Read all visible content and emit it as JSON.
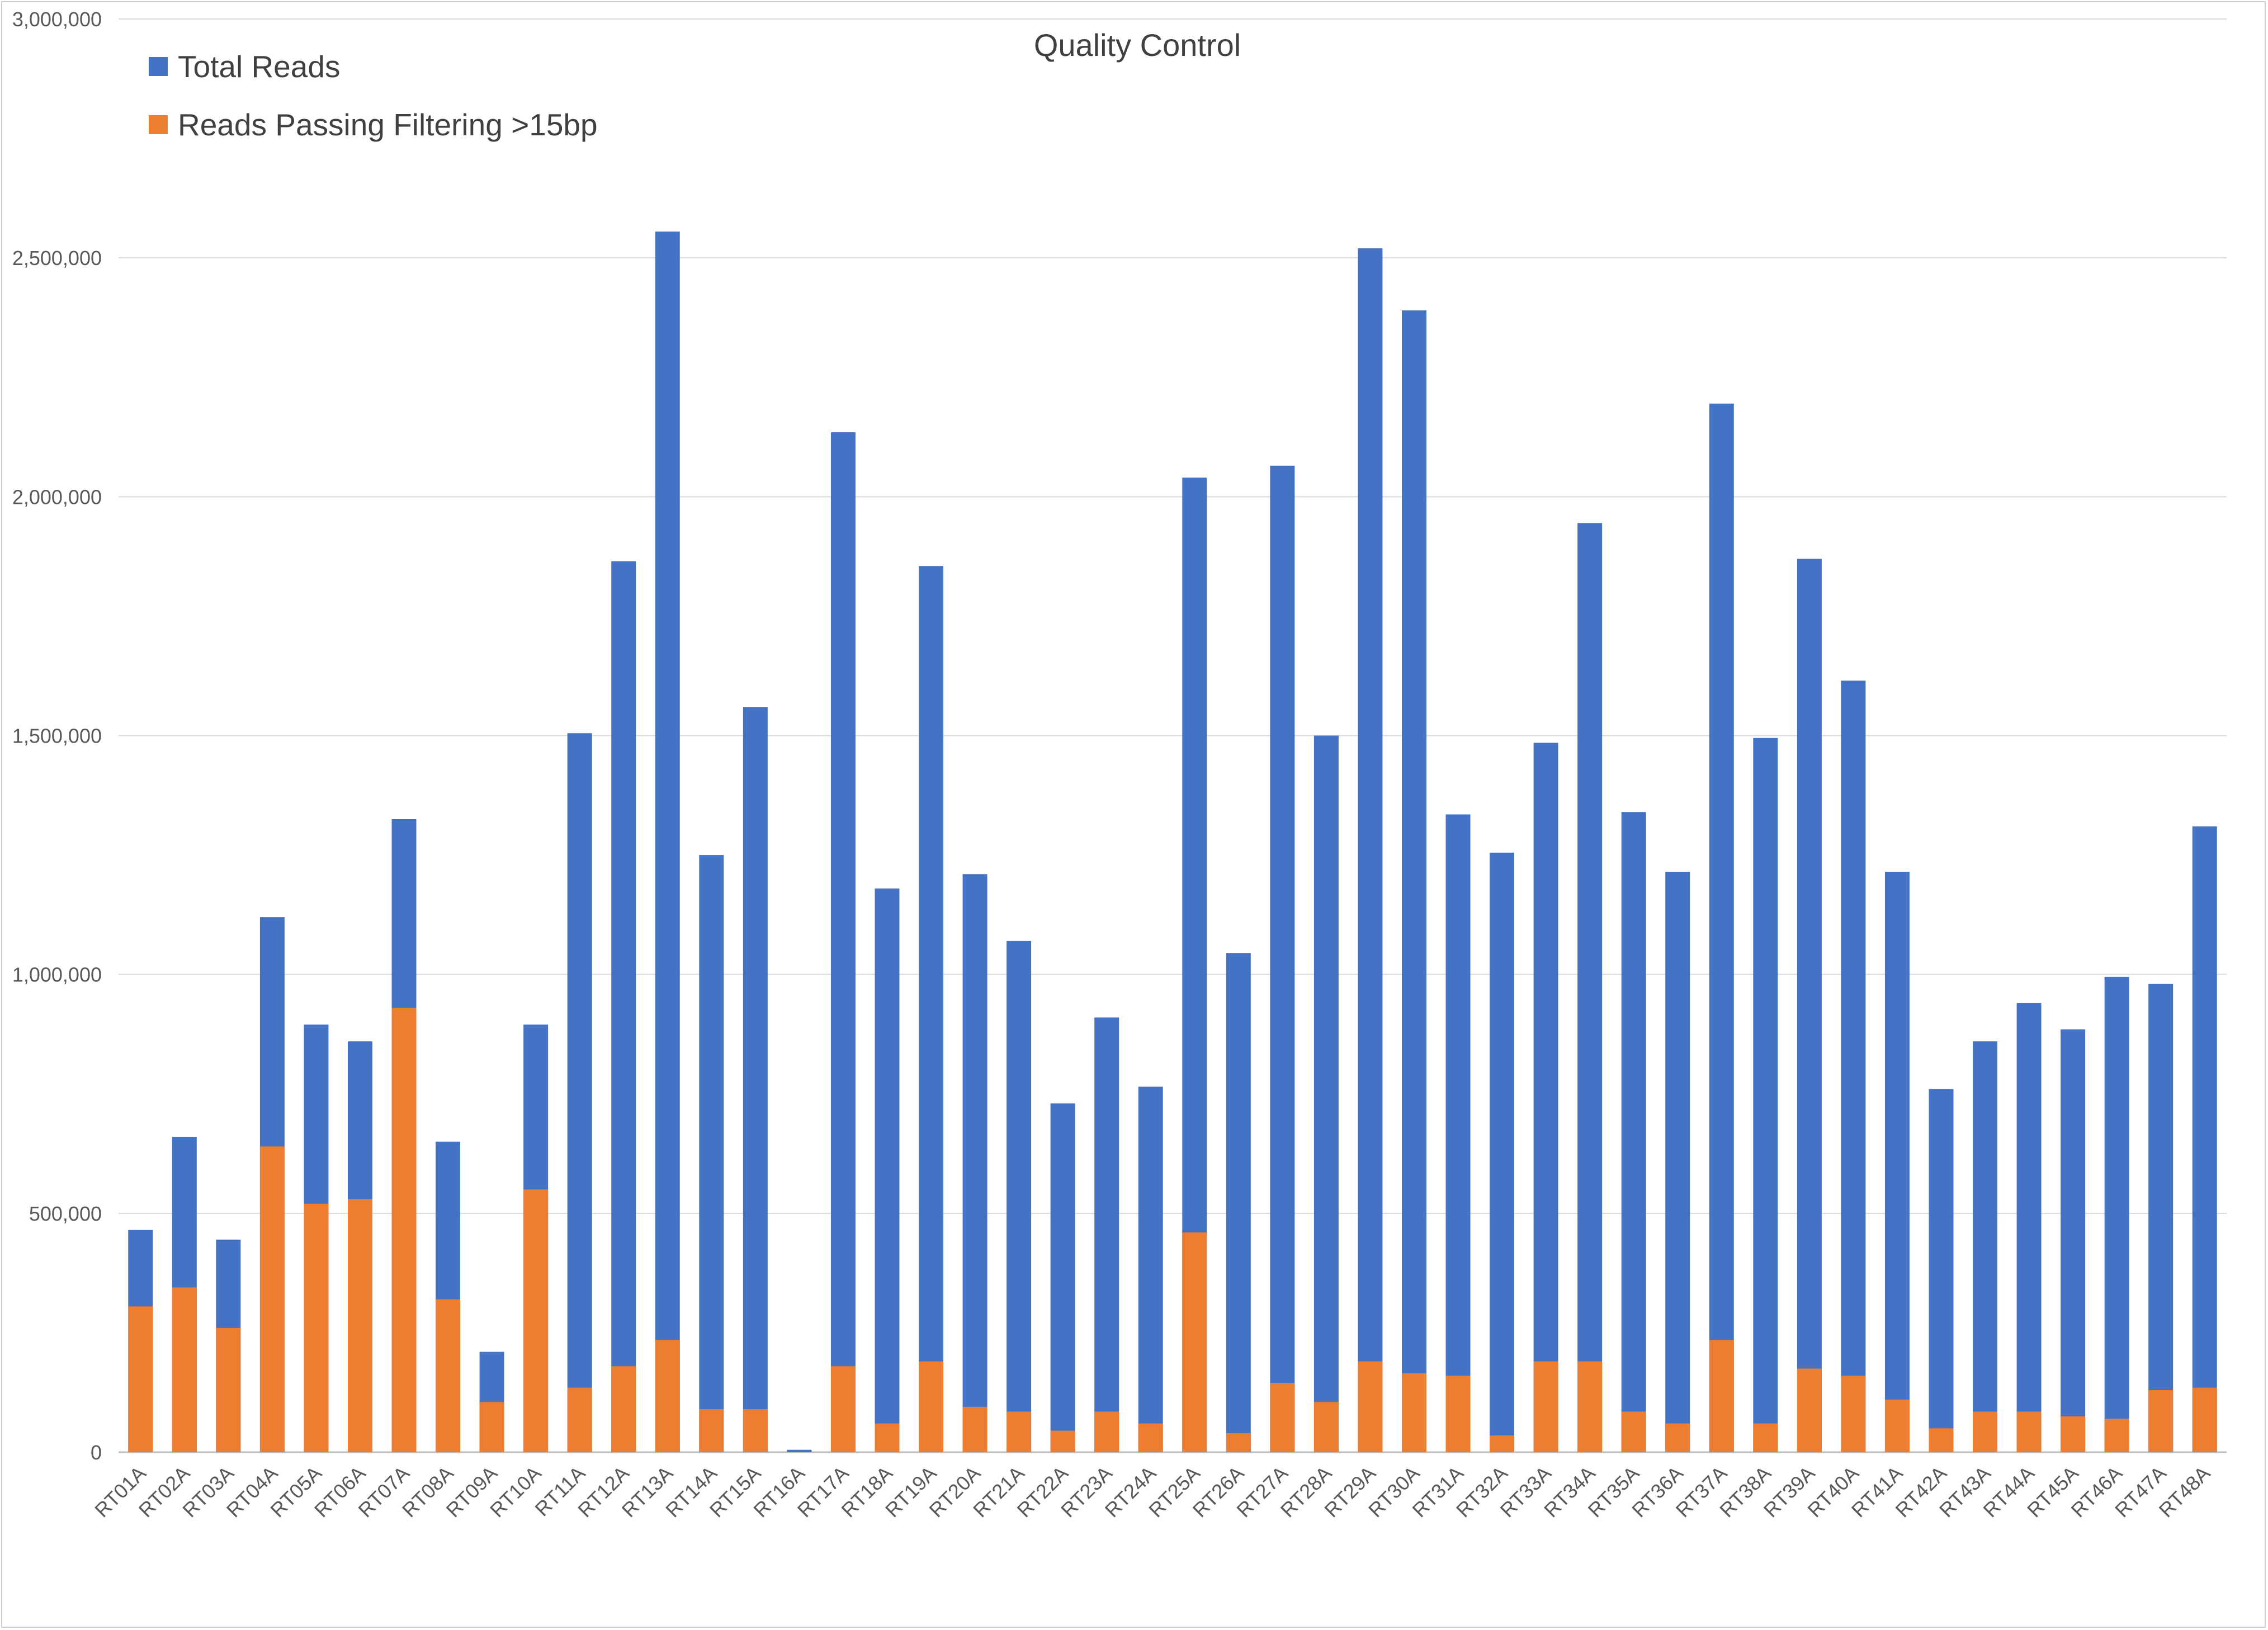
{
  "chart_data": {
    "type": "bar",
    "stacked": "overlay",
    "title": "Quality Control",
    "xlabel": "",
    "ylabel": "",
    "ylim": [
      0,
      3000000
    ],
    "yticks": [
      "0",
      "500,000",
      "1,000,000",
      "1,500,000",
      "2,000,000",
      "2,500,000",
      "3,000,000"
    ],
    "ytick_values": [
      0,
      500000,
      1000000,
      1500000,
      2000000,
      2500000,
      3000000
    ],
    "grid": true,
    "legend_position": "top-left",
    "categories": [
      "RT01A",
      "RT02A",
      "RT03A",
      "RT04A",
      "RT05A",
      "RT06A",
      "RT07A",
      "RT08A",
      "RT09A",
      "RT10A",
      "RT11A",
      "RT12A",
      "RT13A",
      "RT14A",
      "RT15A",
      "RT16A",
      "RT17A",
      "RT18A",
      "RT19A",
      "RT20A",
      "RT21A",
      "RT22A",
      "RT23A",
      "RT24A",
      "RT25A",
      "RT26A",
      "RT27A",
      "RT28A",
      "RT29A",
      "RT30A",
      "RT31A",
      "RT32A",
      "RT33A",
      "RT34A",
      "RT35A",
      "RT36A",
      "RT37A",
      "RT38A",
      "RT39A",
      "RT40A",
      "RT41A",
      "RT42A",
      "RT43A",
      "RT44A",
      "RT45A",
      "RT46A",
      "RT47A",
      "RT48A"
    ],
    "series": [
      {
        "name": "Total Reads",
        "color": "#4472c4",
        "values": [
          465000,
          660000,
          445000,
          1120000,
          895000,
          860000,
          1325000,
          650000,
          210000,
          895000,
          1505000,
          1865000,
          2555000,
          1250000,
          1560000,
          5000,
          2135000,
          1180000,
          1855000,
          1210000,
          1070000,
          730000,
          910000,
          765000,
          2040000,
          1045000,
          2065000,
          1500000,
          2520000,
          2390000,
          1335000,
          1255000,
          1485000,
          1945000,
          1340000,
          1215000,
          2195000,
          1495000,
          1870000,
          1615000,
          1215000,
          760000,
          860000,
          940000,
          885000,
          995000,
          980000,
          1310000
        ]
      },
      {
        "name": "Reads Passing Filtering >15bp",
        "color": "#ed7d31",
        "values": [
          305000,
          345000,
          260000,
          640000,
          520000,
          530000,
          930000,
          320000,
          105000,
          550000,
          135000,
          180000,
          235000,
          90000,
          90000,
          0,
          180000,
          60000,
          190000,
          95000,
          85000,
          45000,
          85000,
          60000,
          460000,
          40000,
          145000,
          105000,
          190000,
          165000,
          160000,
          35000,
          190000,
          190000,
          85000,
          60000,
          235000,
          60000,
          175000,
          160000,
          110000,
          50000,
          85000,
          85000,
          75000,
          70000,
          130000,
          135000
        ]
      }
    ]
  }
}
